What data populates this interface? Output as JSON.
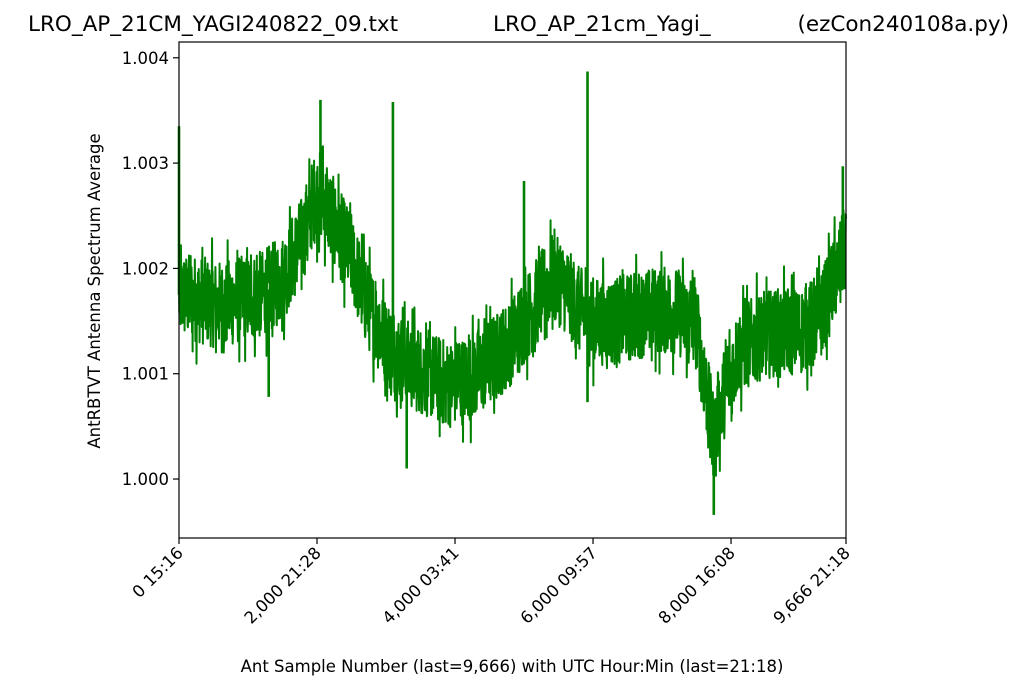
{
  "header": {
    "left": "LRO_AP_21CM_YAGI240822_09.txt",
    "center": "LRO_AP_21cm_Yagi_",
    "right": "(ezCon240108a.py)"
  },
  "chart_data": {
    "type": "line",
    "title": "",
    "xlabel": "Ant Sample Number (last=9,666) with UTC Hour:Min (last=21:18)",
    "ylabel": "AntRBTVT Antenna Spectrum Average",
    "xlim": [
      0,
      9666
    ],
    "ylim": [
      0.99944,
      1.00415
    ],
    "grid": false,
    "x_ticks": [
      {
        "value": 0,
        "label": "0  15:16"
      },
      {
        "value": 2000,
        "label": "2,000  21:28"
      },
      {
        "value": 4000,
        "label": "4,000  03:41"
      },
      {
        "value": 6000,
        "label": "6,000  09:57"
      },
      {
        "value": 8000,
        "label": "8,000  16:08"
      },
      {
        "value": 9666,
        "label": "9,666  21:18"
      }
    ],
    "y_ticks": [
      {
        "value": 1.0,
        "label": "1.000"
      },
      {
        "value": 1.001,
        "label": "1.001"
      },
      {
        "value": 1.002,
        "label": "1.002"
      },
      {
        "value": 1.003,
        "label": "1.003"
      },
      {
        "value": 1.004,
        "label": "1.004"
      }
    ],
    "series": [
      {
        "color": "#008000",
        "x": [
          0,
          300,
          600,
          900,
          1200,
          1500,
          1800,
          1950,
          2050,
          2200,
          2500,
          2700,
          3000,
          3300,
          3600,
          3900,
          4200,
          4500,
          4800,
          5100,
          5400,
          5550,
          5800,
          6000,
          6300,
          6600,
          6900,
          7200,
          7500,
          7600,
          7750,
          7850,
          8100,
          8400,
          8700,
          9000,
          9300,
          9500,
          9666
        ],
        "y": [
          1.00175,
          1.0017,
          1.00165,
          1.0017,
          1.00175,
          1.0019,
          1.0023,
          1.00265,
          1.0027,
          1.0025,
          1.0021,
          1.0017,
          1.0013,
          1.0011,
          1.001,
          1.0009,
          1.00095,
          1.0011,
          1.0013,
          1.0016,
          1.0019,
          1.00185,
          1.0016,
          1.0015,
          1.0015,
          1.00155,
          1.0016,
          1.0016,
          1.00145,
          1.001,
          1.0004,
          1.0007,
          1.0012,
          1.00135,
          1.0014,
          1.0014,
          1.00155,
          1.0019,
          1.0022
        ],
        "spikes": [
          {
            "x": 0,
            "y": 1.00335
          },
          {
            "x": 2050,
            "y": 1.0036
          },
          {
            "x": 3100,
            "y": 1.00358
          },
          {
            "x": 5000,
            "y": 1.00283
          },
          {
            "x": 5920,
            "y": 1.00387
          },
          {
            "x": 5920,
            "y": 1.00073
          },
          {
            "x": 1300,
            "y": 1.00078
          },
          {
            "x": 3300,
            "y": 1.0001
          },
          {
            "x": 7750,
            "y": 0.99966
          },
          {
            "x": 9620,
            "y": 1.00297
          }
        ]
      }
    ]
  }
}
